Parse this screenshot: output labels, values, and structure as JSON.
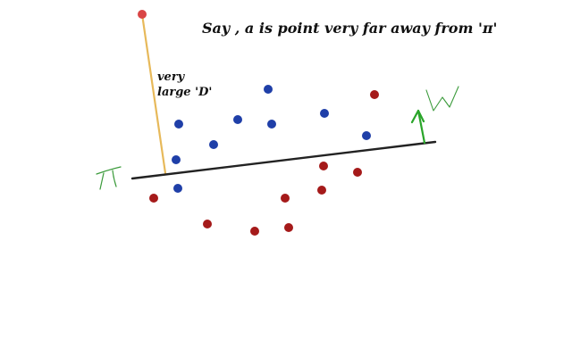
{
  "caption": "Say , a is point very far away from 'π'",
  "distance_label": {
    "line1": "very",
    "line2": "large 'D'"
  },
  "plane_label": "π",
  "normal_label": "W",
  "colors": {
    "blue_class": "#1f3fa8",
    "red_class": "#a51a1a",
    "outlier": "#d94545",
    "plane": "#222222",
    "distance_line": "#e7b95a",
    "normal": "#2aa52a",
    "handwriting": "#3a9a3a"
  },
  "points": {
    "blue": 9,
    "red": 10,
    "outlier": 1
  }
}
